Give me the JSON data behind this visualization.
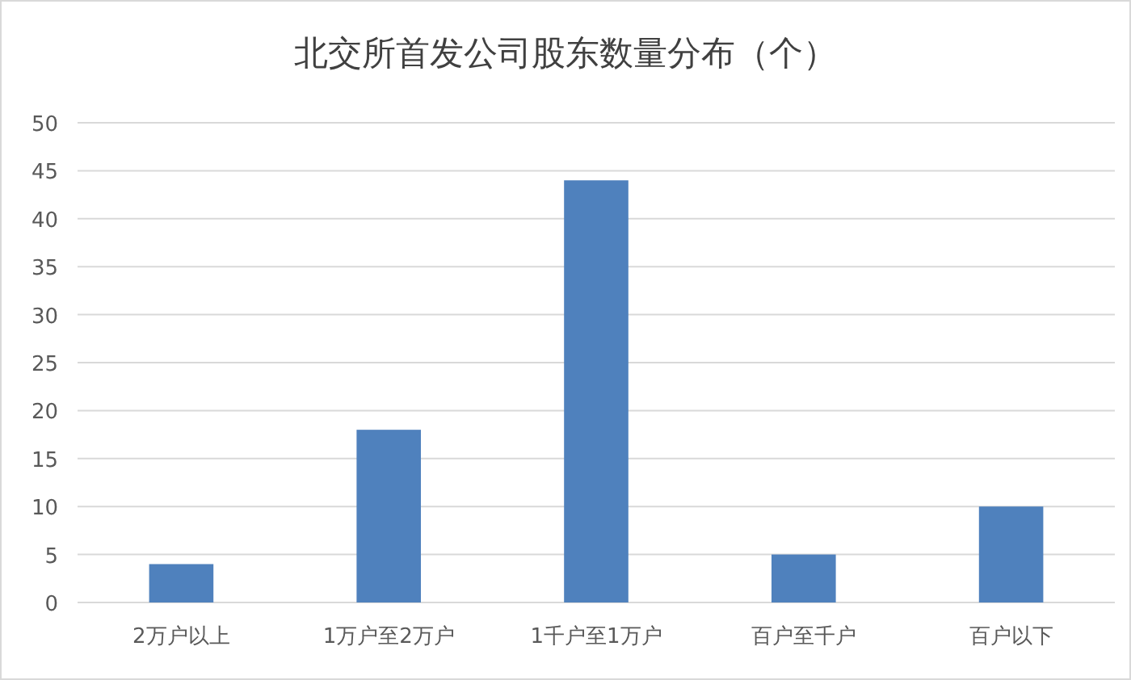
{
  "chart_data": {
    "type": "bar",
    "title": "北交所首发公司股东数量分布（个）",
    "categories": [
      "2万户以上",
      "1万户至2万户",
      "1千户至1万户",
      "百户至千户",
      "百户以下"
    ],
    "values": [
      4,
      18,
      44,
      5,
      10
    ],
    "color": "#4f81bd",
    "ylim": [
      0,
      50
    ],
    "yticks": [
      0,
      5,
      10,
      15,
      20,
      25,
      30,
      35,
      40,
      45,
      50
    ],
    "grid": "y"
  }
}
